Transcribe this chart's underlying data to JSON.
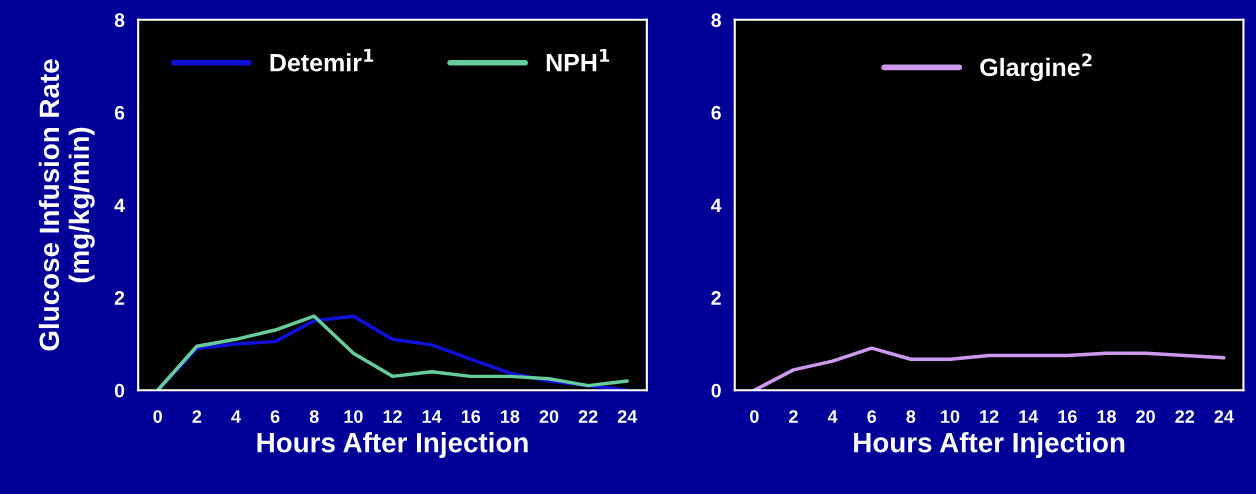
{
  "chart_data": [
    {
      "type": "line",
      "xlabel": "Hours After Injection",
      "ylabel": "Glucose Infusion Rate\n(mg/kg/min)",
      "xlim": [
        -1,
        25
      ],
      "ylim": [
        0,
        8
      ],
      "yticks": [
        0,
        2,
        4,
        6,
        8
      ],
      "xticks": [
        0,
        2,
        4,
        6,
        8,
        10,
        12,
        14,
        16,
        18,
        20,
        22,
        24
      ],
      "grid": false,
      "legend": "top",
      "marker": "none",
      "line_style": "solid",
      "series": [
        {
          "name": "Detemir$^{1}$",
          "color": "#1010d8",
          "x": [
            0,
            2,
            4,
            6,
            8,
            10,
            12,
            14,
            16,
            18,
            20,
            22,
            24
          ],
          "values": [
            0,
            0.9,
            1.0,
            1.05,
            1.5,
            1.6,
            1.1,
            0.98,
            0.67,
            0.37,
            0.2,
            0.1,
            0
          ]
        },
        {
          "name": "NPH$^{1}$",
          "color": "#66cc99",
          "x": [
            0,
            2,
            4,
            6,
            8,
            10,
            12,
            14,
            16,
            18,
            20,
            22,
            24
          ],
          "values": [
            0,
            0.95,
            1.1,
            1.3,
            1.6,
            0.8,
            0.3,
            0.4,
            0.3,
            0.3,
            0.25,
            0.1,
            0.2
          ]
        }
      ]
    },
    {
      "type": "line",
      "xlabel": "Hours After Injection",
      "xlim": [
        -1,
        25
      ],
      "ylim": [
        0,
        8
      ],
      "yticks": [
        0,
        2,
        4,
        6,
        8
      ],
      "xticks": [
        0,
        2,
        4,
        6,
        8,
        10,
        12,
        14,
        16,
        18,
        20,
        22,
        24
      ],
      "grid": false,
      "legend": "top",
      "marker": "none",
      "line_style": "solid",
      "series": [
        {
          "name": "Glargine$^{2}$",
          "color": "#cc99ee",
          "x": [
            0,
            2,
            4,
            6,
            8,
            10,
            12,
            14,
            16,
            18,
            20,
            22,
            24
          ],
          "values": [
            0,
            0.44,
            0.63,
            0.91,
            0.67,
            0.67,
            0.75,
            0.75,
            0.75,
            0.8,
            0.8,
            0.75,
            0.7
          ]
        }
      ]
    }
  ]
}
